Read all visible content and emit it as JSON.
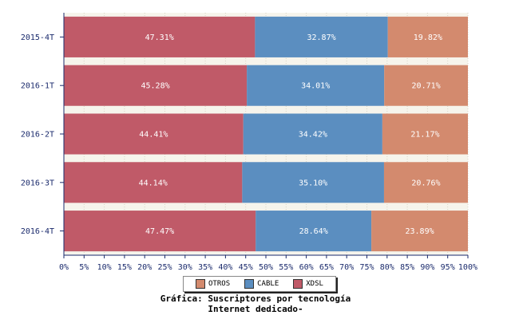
{
  "chart_data": {
    "type": "bar",
    "orientation": "horizontal",
    "stacked": true,
    "title": "Gráfica: Suscriptores por tecnología",
    "subtitle": "Internet dedicado-",
    "categories": [
      "2015-4T",
      "2016-1T",
      "2016-2T",
      "2016-3T",
      "2016-4T"
    ],
    "series": [
      {
        "name": "XDSL",
        "color": "#c05a68",
        "values": [
          47.31,
          45.28,
          44.41,
          44.14,
          47.47
        ],
        "labels": [
          "47.31%",
          "45.28%",
          "44.41%",
          "44.14%",
          "47.47%"
        ]
      },
      {
        "name": "CABLE",
        "color": "#5b8ec0",
        "values": [
          32.87,
          34.01,
          34.42,
          35.1,
          28.64
        ],
        "labels": [
          "32.87%",
          "34.01%",
          "34.42%",
          "35.10%",
          "28.64%"
        ]
      },
      {
        "name": "OTROS",
        "color": "#d38a6e",
        "values": [
          19.82,
          20.71,
          21.17,
          20.76,
          23.89
        ],
        "labels": [
          "19.82%",
          "20.71%",
          "21.17%",
          "20.76%",
          "23.89%"
        ]
      }
    ],
    "xlim": [
      0,
      100
    ],
    "x_ticks": [
      "0%",
      "5%",
      "10%",
      "15%",
      "20%",
      "25%",
      "30%",
      "35%",
      "40%",
      "45%",
      "50%",
      "55%",
      "60%",
      "65%",
      "70%",
      "75%",
      "80%",
      "85%",
      "90%",
      "95%",
      "100%"
    ],
    "legend": {
      "position": "bottom",
      "entries": [
        {
          "name": "OTROS",
          "color": "#d38a6e"
        },
        {
          "name": "CABLE",
          "color": "#5b8ec0"
        },
        {
          "name": "XDSL",
          "color": "#c05a68"
        }
      ]
    },
    "grid": true
  }
}
